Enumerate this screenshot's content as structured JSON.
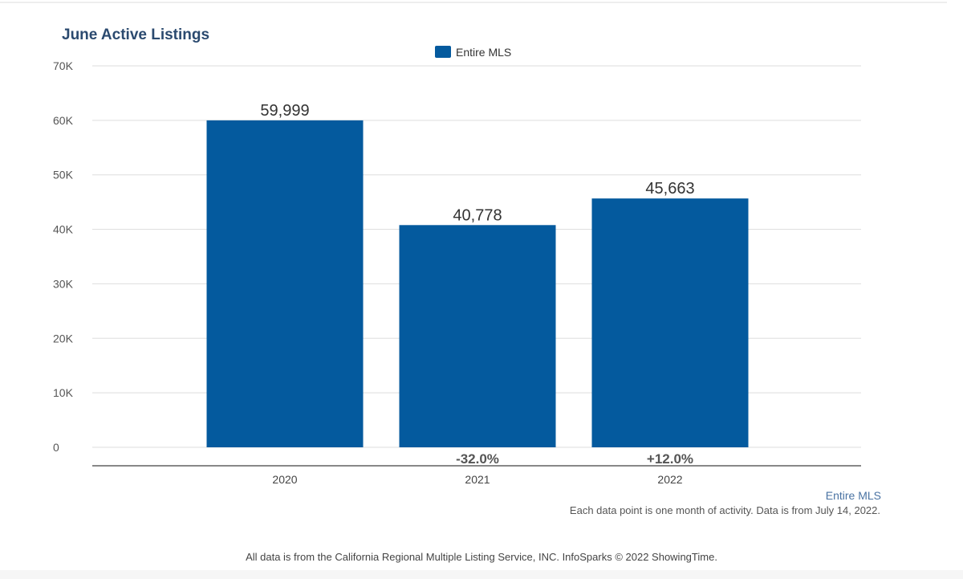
{
  "chart_data": {
    "type": "bar",
    "title": "June Active Listings",
    "categories": [
      "2020",
      "2021",
      "2022"
    ],
    "series": [
      {
        "name": "Entire MLS",
        "values": [
          59999,
          40778,
          45663
        ],
        "color": "#045a9e"
      }
    ],
    "data_labels": [
      "59,999",
      "40,778",
      "45,663"
    ],
    "change_labels": [
      "",
      "-32.0%",
      "+12.0%"
    ],
    "ylim": [
      0,
      70000
    ],
    "yticks": [
      0,
      10000,
      20000,
      30000,
      40000,
      50000,
      60000,
      70000
    ],
    "ytick_labels": [
      "0",
      "10K",
      "20K",
      "30K",
      "40K",
      "50K",
      "60K",
      "70K"
    ],
    "grid": true,
    "legend": "top-center"
  },
  "source_link": "Entire MLS",
  "note": "Each data point is one month of activity. Data is from July 14, 2022.",
  "footer": "All data is from the California Regional Multiple Listing Service, INC. InfoSparks © 2022 ShowingTime."
}
